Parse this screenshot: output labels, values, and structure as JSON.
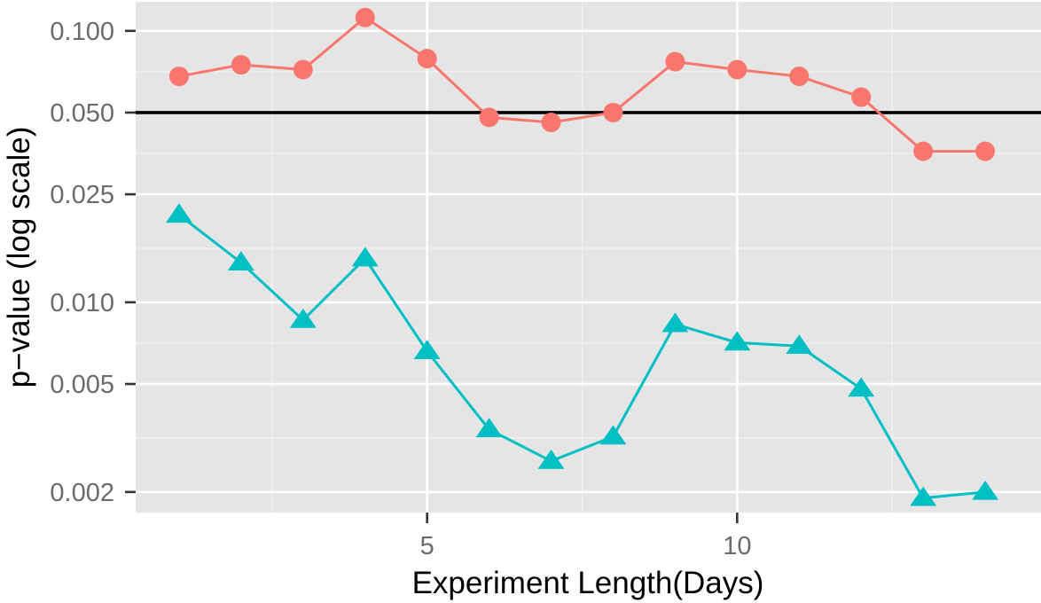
{
  "chart_data": {
    "type": "line",
    "title": "",
    "xlabel": "Experiment Length(Days)",
    "ylabel": "p−value (log scale)",
    "x_scale": "linear",
    "y_scale": "log10",
    "xlim": [
      0.3,
      14.9
    ],
    "ylim": [
      0.00168,
      0.128
    ],
    "x_ticks": [
      5,
      10
    ],
    "x_tick_labels": [
      "5",
      "10"
    ],
    "y_ticks": [
      0.002,
      0.005,
      0.01,
      0.025,
      0.05,
      0.1
    ],
    "y_tick_labels": [
      "0.002",
      "0.005",
      "0.010",
      "0.025",
      "0.050",
      "0.100"
    ],
    "grid": true,
    "legend": "none",
    "reference_line": {
      "y": 0.05,
      "color": "#000000"
    },
    "series": [
      {
        "marker": "circle",
        "color": "#F8766D",
        "x": [
          1,
          2,
          3,
          4,
          5,
          6,
          7,
          8,
          9,
          10,
          11,
          12,
          13,
          14
        ],
        "values": [
          0.068,
          0.075,
          0.072,
          0.112,
          0.079,
          0.048,
          0.046,
          0.05,
          0.077,
          0.072,
          0.068,
          0.057,
          0.036,
          0.036
        ]
      },
      {
        "marker": "triangle",
        "color": "#00BFC4",
        "x": [
          1,
          2,
          3,
          4,
          5,
          6,
          7,
          8,
          9,
          10,
          11,
          12,
          13,
          14
        ],
        "values": [
          0.021,
          0.014,
          0.0086,
          0.0145,
          0.0066,
          0.0034,
          0.0026,
          0.0032,
          0.0083,
          0.0071,
          0.0069,
          0.0048,
          0.0019,
          0.002
        ]
      }
    ]
  }
}
